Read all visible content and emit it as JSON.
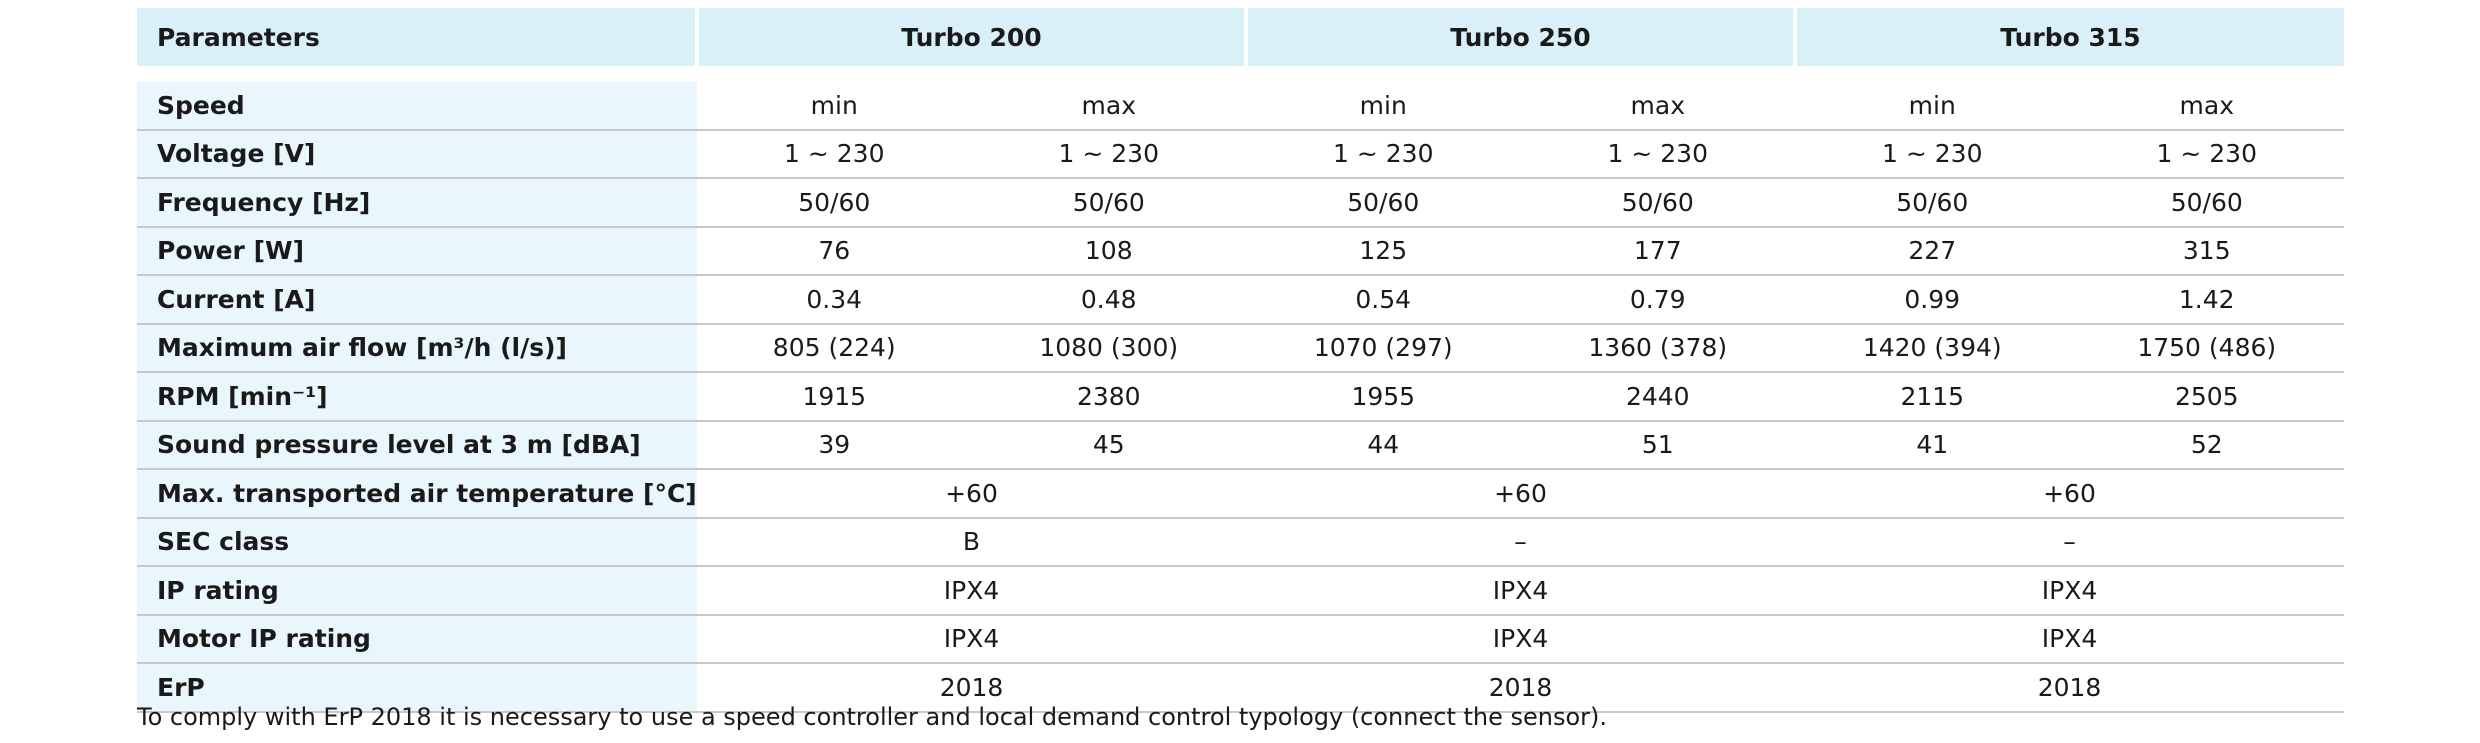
{
  "header": {
    "param_label": "Parameters",
    "models": [
      "Turbo 200",
      "Turbo 250",
      "Turbo 315"
    ]
  },
  "rows": [
    {
      "label": "Speed",
      "values": [
        "min",
        "max",
        "min",
        "max",
        "min",
        "max"
      ]
    },
    {
      "label": "Voltage [V]",
      "values": [
        "1 ~ 230",
        "1 ~ 230",
        "1 ~ 230",
        "1 ~ 230",
        "1 ~ 230",
        "1 ~ 230"
      ]
    },
    {
      "label": "Frequency [Hz]",
      "values": [
        "50/60",
        "50/60",
        "50/60",
        "50/60",
        "50/60",
        "50/60"
      ]
    },
    {
      "label": "Power [W]",
      "values": [
        "76",
        "108",
        "125",
        "177",
        "227",
        "315"
      ]
    },
    {
      "label": "Current [A]",
      "values": [
        "0.34",
        "0.48",
        "0.54",
        "0.79",
        "0.99",
        "1.42"
      ]
    },
    {
      "label": "Maximum air flow [m³/h (l/s)]",
      "values": [
        "805 (224)",
        "1080 (300)",
        "1070 (297)",
        "1360 (378)",
        "1420 (394)",
        "1750 (486)"
      ]
    },
    {
      "label": "RPM [min⁻¹]",
      "values": [
        "1915",
        "2380",
        "1955",
        "2440",
        "2115",
        "2505"
      ]
    },
    {
      "label": "Sound pressure level at 3 m [dBA]",
      "values": [
        "39",
        "45",
        "44",
        "51",
        "41",
        "52"
      ]
    },
    {
      "label": "Max. transported air temperature [°C]",
      "merged": [
        "+60",
        "+60",
        "+60"
      ]
    },
    {
      "label": "SEC class",
      "merged": [
        "B",
        "–",
        "–"
      ]
    },
    {
      "label": "IP rating",
      "merged": [
        "IPX4",
        "IPX4",
        "IPX4"
      ]
    },
    {
      "label": "Motor IP rating",
      "merged": [
        "IPX4",
        "IPX4",
        "IPX4"
      ]
    },
    {
      "label": "ErP",
      "merged": [
        "2018",
        "2018",
        "2018"
      ]
    }
  ],
  "footnote": "To comply with ErP 2018 it is necessary to use a speed controller and local demand control typology (connect the sensor).",
  "colors": {
    "header_bg": "#d9f0f9",
    "param_col_bg": "#e9f6fb",
    "rule": "#c8c8c8"
  }
}
